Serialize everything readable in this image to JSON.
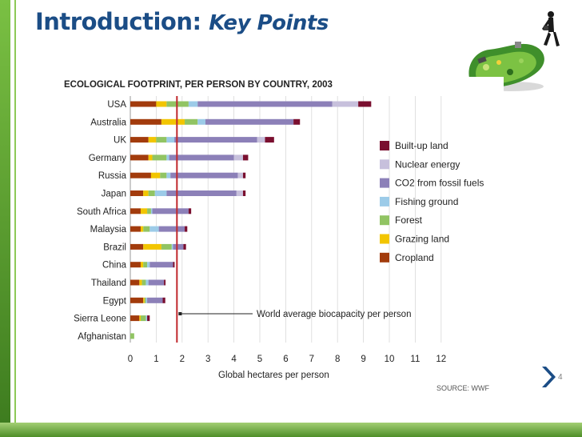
{
  "slide": {
    "title_main": "Introduction:",
    "title_sub": "Key Points",
    "page_number": "4"
  },
  "chart_data": {
    "type": "bar",
    "orientation": "horizontal",
    "stacked": true,
    "title": "ECOLOGICAL FOOTPRINT, PER PERSON BY COUNTRY, 2003",
    "xlabel": "Global hectares per person",
    "ylabel": "",
    "xlim": [
      0,
      12
    ],
    "xticks": [
      "0",
      "1",
      "2",
      "3",
      "4",
      "5",
      "6",
      "7",
      "8",
      "9",
      "10",
      "11",
      "12"
    ],
    "grid": true,
    "legend_position": "right",
    "source": "SOURCE: WWF",
    "categories": [
      "USA",
      "Australia",
      "UK",
      "Germany",
      "Russia",
      "Japan",
      "South Africa",
      "Malaysia",
      "Brazil",
      "China",
      "Thailand",
      "Egypt",
      "Sierra Leone",
      "Afghanistan"
    ],
    "series": [
      {
        "name": "Cropland",
        "color": "#a23b0c",
        "values": [
          1.0,
          1.2,
          0.7,
          0.7,
          0.8,
          0.5,
          0.4,
          0.4,
          0.5,
          0.4,
          0.35,
          0.5,
          0.35,
          0.0
        ]
      },
      {
        "name": "Grazing land",
        "color": "#f2c500",
        "values": [
          0.4,
          0.9,
          0.3,
          0.15,
          0.35,
          0.2,
          0.25,
          0.1,
          0.7,
          0.1,
          0.1,
          0.05,
          0.05,
          0.0
        ]
      },
      {
        "name": "Forest",
        "color": "#91c463",
        "values": [
          0.85,
          0.5,
          0.4,
          0.55,
          0.25,
          0.25,
          0.15,
          0.25,
          0.4,
          0.15,
          0.15,
          0.05,
          0.2,
          0.15
        ]
      },
      {
        "name": "Fishing ground",
        "color": "#9ccbe8",
        "values": [
          0.35,
          0.3,
          0.3,
          0.1,
          0.15,
          0.45,
          0.05,
          0.35,
          0.05,
          0.1,
          0.1,
          0.05,
          0.05,
          0.0
        ]
      },
      {
        "name": "CO2 from fossil fuels",
        "color": "#8c80b8",
        "values": [
          5.2,
          3.4,
          3.2,
          2.5,
          2.6,
          2.7,
          1.4,
          1.0,
          0.4,
          0.9,
          0.6,
          0.6,
          0.0,
          0.0
        ]
      },
      {
        "name": "Nuclear energy",
        "color": "#c7c0dc",
        "values": [
          1.0,
          0.0,
          0.3,
          0.35,
          0.2,
          0.25,
          0.0,
          0.0,
          0.0,
          0.0,
          0.0,
          0.0,
          0.0,
          0.0
        ]
      },
      {
        "name": "Built-up land",
        "color": "#7a0f2f",
        "values": [
          0.5,
          0.25,
          0.35,
          0.2,
          0.1,
          0.1,
          0.1,
          0.1,
          0.1,
          0.06,
          0.06,
          0.1,
          0.1,
          0.0
        ]
      }
    ],
    "legend_order": [
      "Built-up land",
      "Nuclear energy",
      "CO2 from fossil fuels",
      "Fishing ground",
      "Forest",
      "Grazing land",
      "Cropland"
    ],
    "reference_line": {
      "value": 1.8,
      "label": "World average biocapacity per person",
      "color": "#c0282c"
    }
  }
}
